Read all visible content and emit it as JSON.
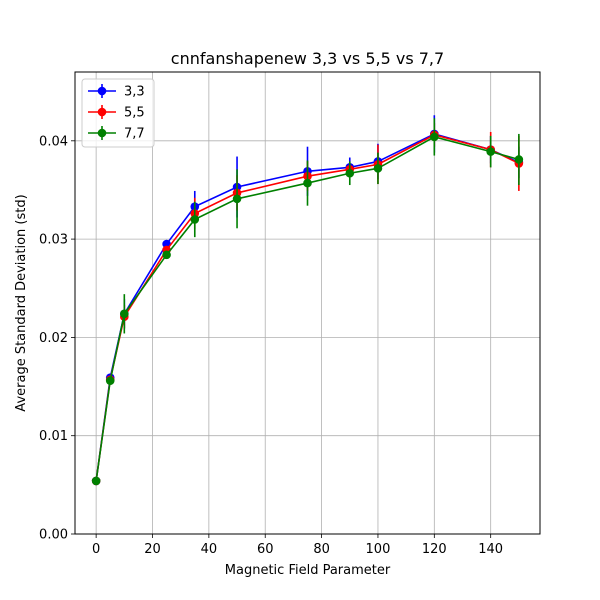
{
  "chart_data": {
    "type": "line",
    "title": "cnnfanshapenew 3,3 vs 5,5 vs 7,7",
    "xlabel": "Magnetic Field Parameter",
    "ylabel": "Average Standard Deviation (std)",
    "xlim": [
      -7.5,
      157.5
    ],
    "ylim": [
      0,
      0.047
    ],
    "xticks": [
      0,
      20,
      40,
      60,
      80,
      100,
      120,
      140
    ],
    "xtick_labels": [
      "0",
      "20",
      "40",
      "60",
      "80",
      "100",
      "120",
      "140"
    ],
    "yticks": [
      0,
      0.01,
      0.02,
      0.03,
      0.04
    ],
    "ytick_labels": [
      "0.00",
      "0.01",
      "0.02",
      "0.03",
      "0.04"
    ],
    "grid": true,
    "legend_position": "top-left",
    "x": [
      0,
      5,
      10,
      25,
      35,
      50,
      75,
      90,
      100,
      120,
      140,
      150
    ],
    "series": [
      {
        "name": "3,3",
        "color": "#0000ff",
        "values": [
          0.0054,
          0.0159,
          0.0224,
          0.0295,
          0.0333,
          0.0353,
          0.0369,
          0.0373,
          0.0379,
          0.0407,
          0.0391,
          0.0378
        ],
        "errors": [
          0.0003,
          0.0004,
          0.0015,
          0.0002,
          0.0016,
          0.0031,
          0.0025,
          0.001,
          0.0018,
          0.0019,
          0.0014,
          0.0016
        ]
      },
      {
        "name": "5,5",
        "color": "#ff0000",
        "values": [
          0.0054,
          0.0157,
          0.0221,
          0.0289,
          0.0326,
          0.0347,
          0.0364,
          0.0371,
          0.0376,
          0.0406,
          0.0391,
          0.0377
        ],
        "errors": [
          0.0003,
          0.0004,
          0.0012,
          0.0003,
          0.0016,
          0.0018,
          0.0015,
          0.0006,
          0.002,
          0.0012,
          0.0018,
          0.0028
        ]
      },
      {
        "name": "7,7",
        "color": "#008000",
        "values": [
          0.0054,
          0.0156,
          0.0224,
          0.0284,
          0.032,
          0.0341,
          0.0357,
          0.0367,
          0.0372,
          0.0404,
          0.0389,
          0.0381
        ],
        "errors": [
          0.0003,
          0.0004,
          0.002,
          0.0002,
          0.0018,
          0.003,
          0.0023,
          0.0012,
          0.0016,
          0.0019,
          0.0016,
          0.0026
        ]
      }
    ]
  }
}
